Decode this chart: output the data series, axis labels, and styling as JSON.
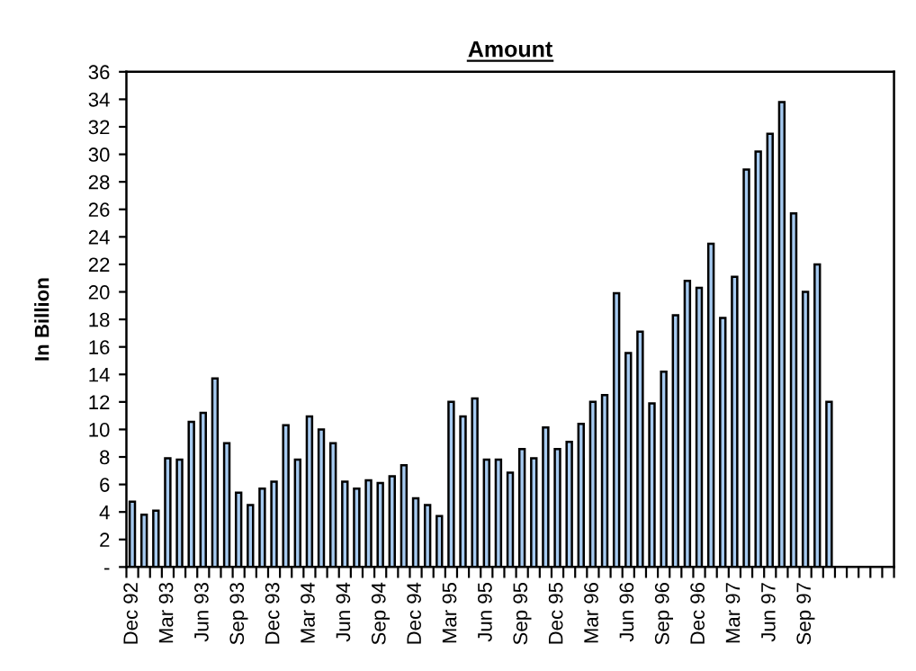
{
  "chart_data": {
    "type": "bar",
    "title": "Amount",
    "ylabel": "In Billion",
    "categories": [
      "Dec 92",
      null,
      null,
      "Mar 93",
      null,
      null,
      "Jun 93",
      null,
      null,
      "Sep 93",
      null,
      null,
      "Dec 93",
      null,
      null,
      "Mar 94",
      null,
      null,
      "Jun 94",
      null,
      null,
      "Sep 94",
      null,
      null,
      "Dec 94",
      null,
      null,
      "Mar 95",
      null,
      null,
      "Jun 95",
      null,
      null,
      "Sep 95",
      null,
      null,
      "Dec 95",
      null,
      null,
      "Mar 96",
      null,
      null,
      "Jun 96",
      null,
      null,
      "Sep 96",
      null,
      null,
      "Dec 96",
      null,
      null,
      "Mar 97",
      null,
      null,
      "Jun 97",
      null,
      null,
      "Sep 97",
      null,
      null,
      null,
      null,
      null,
      null,
      null
    ],
    "values": [
      4.75,
      3.8,
      4.1,
      7.9,
      7.8,
      10.55,
      11.2,
      13.7,
      9.0,
      5.4,
      4.5,
      5.7,
      6.2,
      10.3,
      7.8,
      10.95,
      10.0,
      9.0,
      6.2,
      5.7,
      6.3,
      6.1,
      6.6,
      7.4,
      5.0,
      4.5,
      3.7,
      12.0,
      10.95,
      12.26,
      7.8,
      7.8,
      6.86,
      8.57,
      7.9,
      10.15,
      8.57,
      9.1,
      10.4,
      12.0,
      12.5,
      19.9,
      15.56,
      17.1,
      11.9,
      14.2,
      18.3,
      20.8,
      20.3,
      23.5,
      18.1,
      21.1,
      28.9,
      30.2,
      31.5,
      33.8,
      25.7,
      20.0,
      22.0,
      12.0,
      null,
      null,
      null,
      null,
      null
    ],
    "color": "#a6caf0",
    "ylim": [
      0,
      36
    ],
    "yticks": [
      {
        "value": 0,
        "label": "-"
      },
      2,
      4,
      6,
      8,
      10,
      12,
      14,
      16,
      18,
      20,
      22,
      24,
      26,
      28,
      30,
      32,
      34,
      36
    ],
    "grid": false,
    "legend": false
  }
}
